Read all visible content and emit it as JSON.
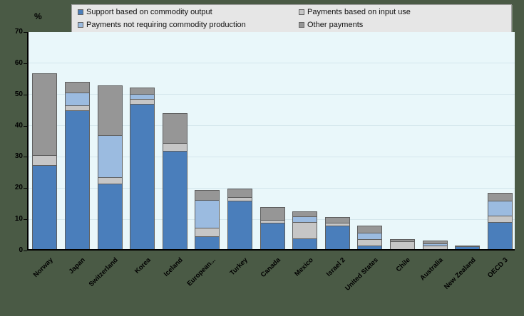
{
  "y_axis_unit": "%",
  "chart_data": {
    "type": "bar",
    "stacked": true,
    "title": "",
    "xlabel": "",
    "ylabel": "%",
    "ylim": [
      0,
      70
    ],
    "ytick_step": 10,
    "yticks": [
      "0",
      "10",
      "20",
      "30",
      "40",
      "50",
      "60",
      "70"
    ],
    "grid": true,
    "legend_position": "top",
    "categories": [
      "Norway",
      "Japan",
      "Switzerland",
      "Korea",
      "Iceland",
      "European...",
      "Turkey",
      "Canada",
      "Mexico",
      "Israel 2",
      "United States",
      "Chile",
      "Australia",
      "New Zealand",
      "OECD 3"
    ],
    "series": [
      {
        "name": "Support based on commodity output",
        "color": "#4a7ebb",
        "values": [
          27,
          44.5,
          21,
          46.5,
          31.5,
          4,
          15.5,
          8.5,
          3.5,
          7.5,
          1.1,
          0,
          0,
          0.8,
          8.7
        ]
      },
      {
        "name": "Payments based on input use",
        "color": "#c6c6c6",
        "values": [
          3.2,
          1.5,
          2,
          1.5,
          2.5,
          2.8,
          1.1,
          1,
          5.3,
          0.9,
          2,
          2.4,
          1.1,
          0,
          2
        ]
      },
      {
        "name": "Payments not requiring commodity production",
        "color": "#9bbbe0",
        "values": [
          0,
          4,
          13.5,
          1.7,
          0,
          9,
          0,
          0,
          1.9,
          0,
          2.1,
          0,
          0.6,
          0,
          4.8
        ]
      },
      {
        "name": "Other payments",
        "color": "#969696",
        "values": [
          26.3,
          3.5,
          16,
          2.1,
          9.5,
          3.1,
          2.7,
          4,
          1.5,
          1.9,
          2.3,
          0.7,
          0.8,
          0.3,
          2.4
        ]
      }
    ]
  },
  "colors": {
    "plot_background": "#e9f7fa",
    "outer_background": "#4a5a45",
    "legend_background": "#e6e6e6",
    "gridline": "#d4e6ec",
    "segment_border": "#5f5f5f"
  }
}
